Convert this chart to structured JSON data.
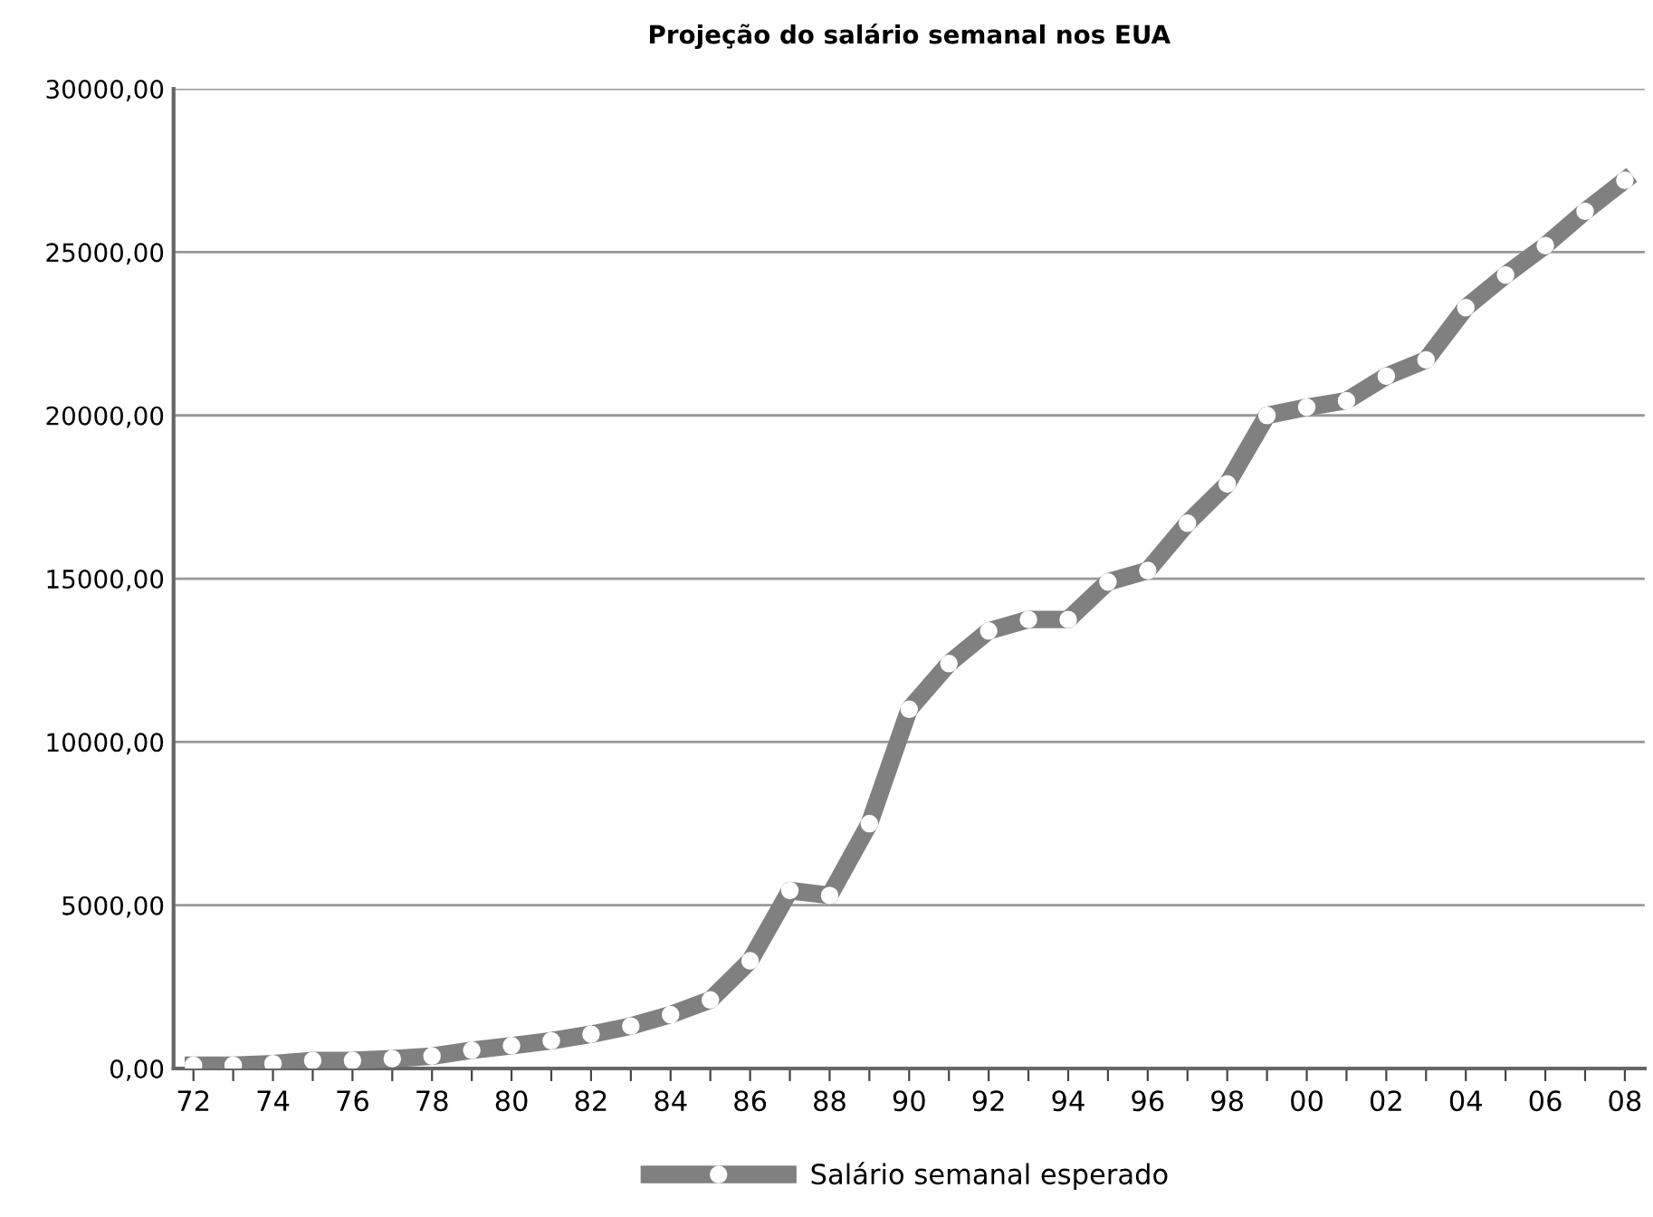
{
  "chart_data": {
    "type": "line",
    "title": "Projeção do salário semanal nos EUA",
    "categories": [
      "72",
      null,
      "74",
      null,
      "76",
      null,
      "78",
      null,
      "80",
      null,
      "82",
      null,
      "84",
      null,
      "86",
      null,
      "88",
      null,
      "90",
      null,
      "92",
      null,
      "94",
      null,
      "96",
      null,
      "98",
      null,
      "00",
      null,
      "02",
      null,
      "04",
      null,
      "06",
      null,
      "08"
    ],
    "series": [
      {
        "name": "Salário semanal esperado",
        "color": "#808080",
        "values": [
          100,
          100,
          150,
          245,
          250,
          300,
          380,
          560,
          700,
          850,
          1050,
          1300,
          1650,
          2100,
          3300,
          5450,
          5300,
          7500,
          11000,
          12400,
          13400,
          13750,
          13750,
          14900,
          15250,
          16700,
          17900,
          20000,
          20250,
          20450,
          21200,
          21700,
          23300,
          24300,
          25200,
          26250,
          27200
        ]
      }
    ],
    "ylim": [
      0,
      30000
    ],
    "yticks": [
      {
        "value": 0,
        "label": "0,00"
      },
      {
        "value": 5000,
        "label": "5000,00"
      },
      {
        "value": 10000,
        "label": "10000,00"
      },
      {
        "value": 15000,
        "label": "15000,00"
      },
      {
        "value": 20000,
        "label": "20000,00"
      },
      {
        "value": 25000,
        "label": "25000,00"
      },
      {
        "value": 30000,
        "label": "30000,00"
      }
    ],
    "grid": "y",
    "legend": "bottom",
    "marker": "circle",
    "line_style": "solid"
  }
}
